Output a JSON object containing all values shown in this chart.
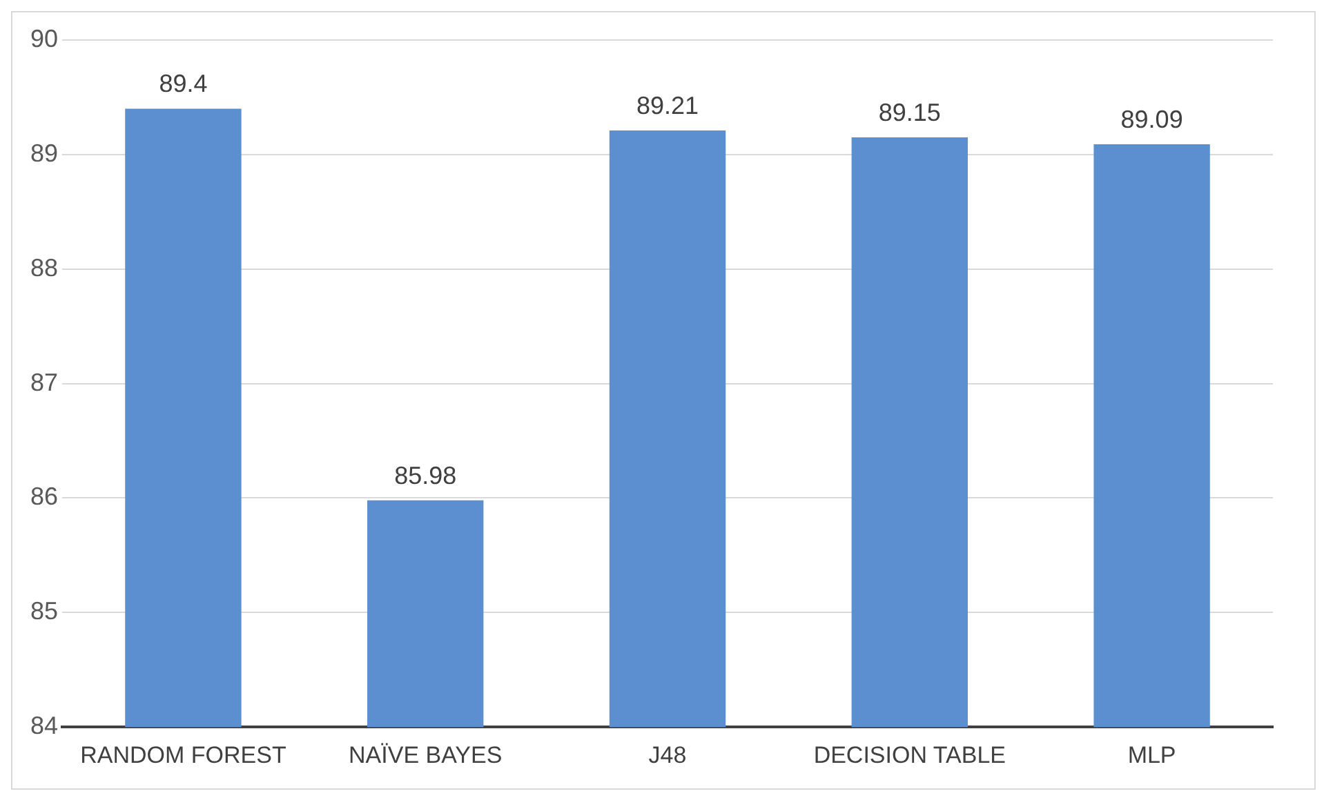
{
  "chart_data": {
    "type": "bar",
    "categories": [
      "RANDOM FOREST",
      "NAÏVE BAYES",
      "J48",
      "DECISION TABLE",
      "MLP"
    ],
    "values": [
      89.4,
      85.98,
      89.21,
      89.15,
      89.09
    ],
    "color": "#5b8fd0",
    "ylim": [
      84,
      90
    ],
    "yticks": [
      84,
      85,
      86,
      87,
      88,
      89,
      90
    ],
    "grid": "y",
    "data_labels": true,
    "legend": false
  }
}
